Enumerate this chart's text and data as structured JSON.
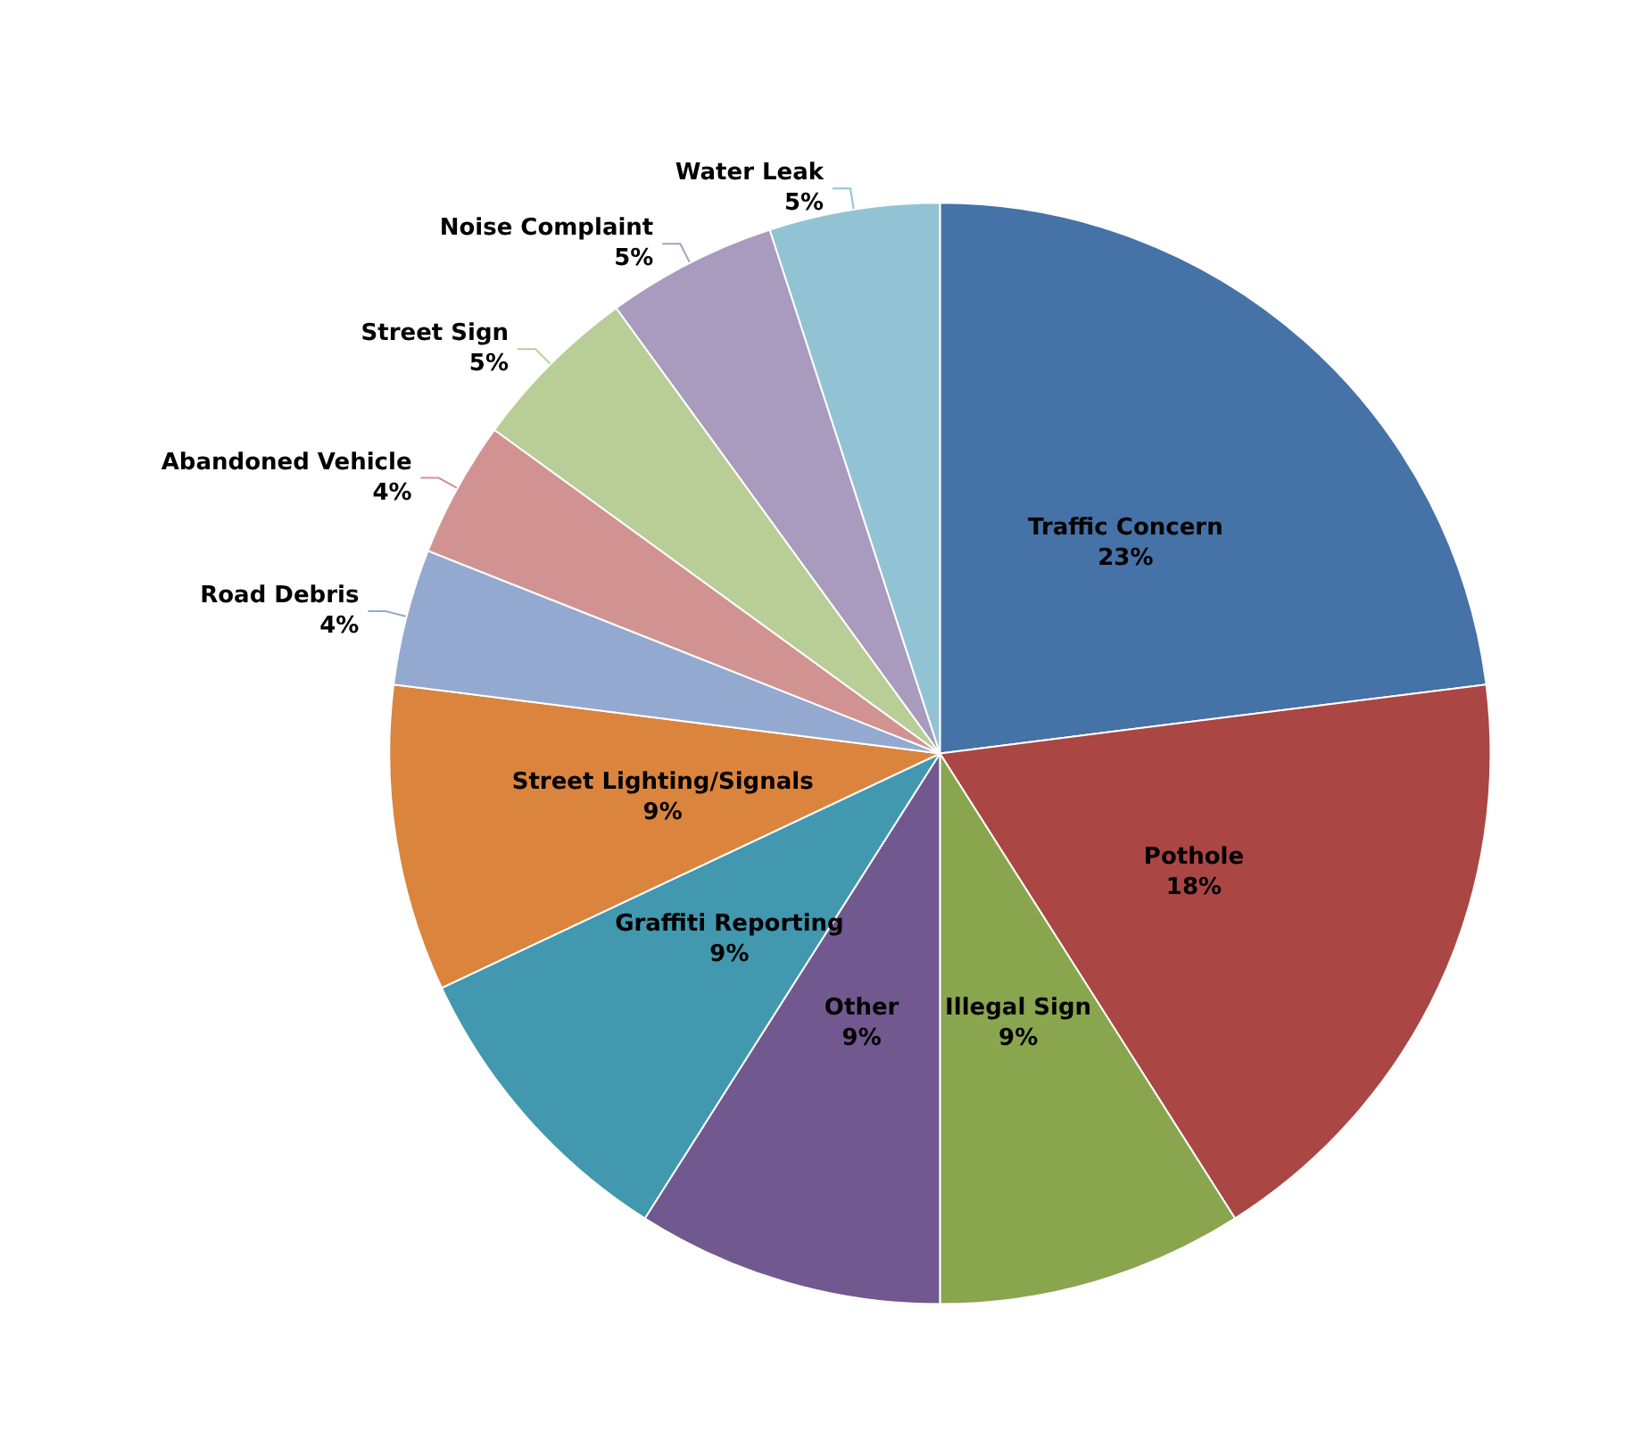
{
  "chart_data": {
    "type": "pie",
    "categories": [
      "Traffic Concern",
      "Pothole",
      "Illegal Sign",
      "Other",
      "Graffiti Reporting",
      "Street Lighting/Signals",
      "Road Debris",
      "Abandoned Vehicle",
      "Street Sign",
      "Noise Complaint",
      "Water Leak"
    ],
    "values": [
      23,
      18,
      9,
      9,
      9,
      9,
      4,
      4,
      5,
      5,
      5
    ],
    "value_labels": [
      "23%",
      "18%",
      "9%",
      "9%",
      "9%",
      "9%",
      "4%",
      "4%",
      "5%",
      "5%",
      "5%"
    ],
    "colors": [
      "#4572a7",
      "#aa4643",
      "#89a54e",
      "#71588f",
      "#4198af",
      "#db843d",
      "#93a9cf",
      "#d19392",
      "#b9cd96",
      "#a99bbd",
      "#92c3d4"
    ],
    "legend": false
  }
}
